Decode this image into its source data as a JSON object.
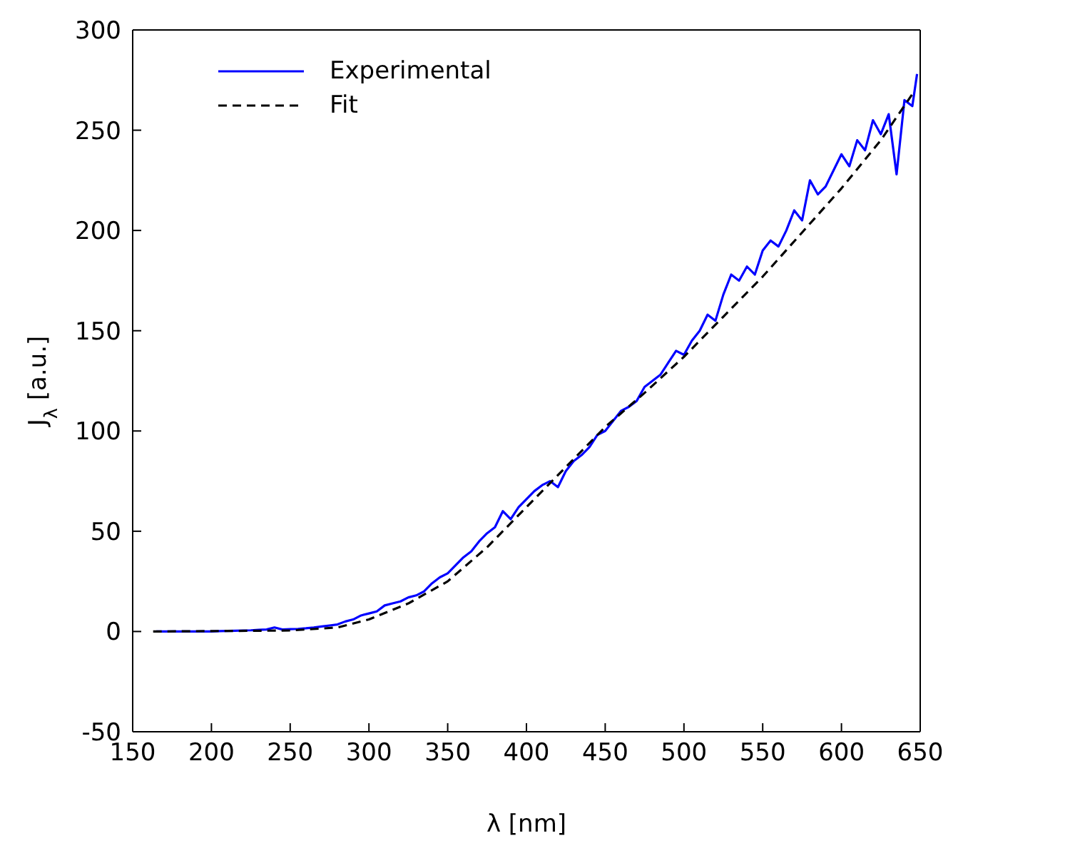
{
  "chart_data": {
    "type": "line",
    "xlabel": "λ [nm]",
    "ylabel": "J$_{λ}$ [a.u.]",
    "xlim": [
      150,
      650
    ],
    "xticks": [
      150,
      200,
      250,
      300,
      350,
      400,
      450,
      500,
      550,
      600,
      650
    ],
    "ylim": [
      -50,
      300
    ],
    "yticks": [
      -50,
      0,
      50,
      100,
      150,
      200,
      250,
      300
    ],
    "legend": "top left",
    "marker": "none",
    "series": [
      {
        "name": "Experimental",
        "color": "#0000ff",
        "line_style": "solid",
        "x": [
          165,
          170,
          175,
          180,
          185,
          190,
          195,
          200,
          205,
          210,
          215,
          220,
          225,
          230,
          235,
          240,
          245,
          250,
          255,
          260,
          265,
          270,
          275,
          280,
          285,
          290,
          295,
          300,
          305,
          310,
          315,
          320,
          325,
          330,
          335,
          340,
          345,
          350,
          355,
          360,
          365,
          370,
          375,
          380,
          385,
          390,
          395,
          400,
          405,
          410,
          415,
          420,
          425,
          430,
          435,
          440,
          445,
          450,
          455,
          460,
          465,
          470,
          475,
          480,
          485,
          490,
          495,
          500,
          505,
          510,
          515,
          520,
          525,
          530,
          535,
          540,
          545,
          550,
          555,
          560,
          565,
          570,
          575,
          580,
          585,
          590,
          595,
          600,
          605,
          610,
          615,
          620,
          625,
          630,
          635,
          640,
          645,
          648
        ],
        "values": [
          0,
          0,
          0,
          0,
          0,
          0,
          0,
          0,
          0.2,
          0.3,
          0.4,
          0.5,
          0.6,
          0.8,
          1,
          2,
          1,
          1.2,
          1.3,
          1.6,
          2,
          2.5,
          3,
          3.5,
          5,
          6,
          8,
          9,
          10,
          13,
          14,
          15,
          17,
          18,
          20,
          24,
          27,
          29,
          33,
          37,
          40,
          45,
          49,
          52,
          60,
          56,
          62,
          66,
          70,
          73,
          75,
          72,
          80,
          85,
          88,
          92,
          98,
          100,
          105,
          110,
          112,
          115,
          122,
          125,
          128,
          134,
          140,
          138,
          145,
          150,
          158,
          155,
          168,
          178,
          175,
          182,
          178,
          190,
          195,
          192,
          200,
          210,
          205,
          225,
          218,
          222,
          230,
          238,
          232,
          245,
          240,
          255,
          248,
          258,
          228,
          265,
          262,
          278
        ]
      },
      {
        "name": "Fit",
        "color": "#000000",
        "line_style": "dashed",
        "x": [
          163,
          250,
          280,
          300,
          325,
          350,
          375,
          400,
          425,
          450,
          475,
          500,
          525,
          550,
          575,
          600,
          625,
          645
        ],
        "values": [
          0,
          0.5,
          2,
          6,
          14,
          25,
          42,
          62,
          82,
          102,
          119,
          137,
          157,
          177,
          199,
          221,
          245,
          268
        ]
      }
    ]
  }
}
